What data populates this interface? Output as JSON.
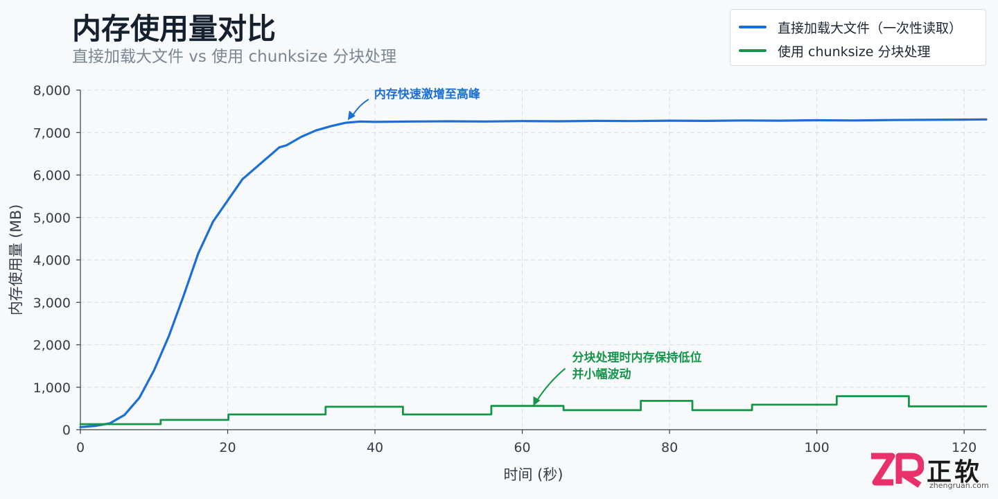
{
  "chart_data": {
    "type": "line",
    "title": "内存使用量对比",
    "subtitle": "直接加载大文件 vs 使用 chunksize 分块处理",
    "xlabel": "时间 (秒)",
    "ylabel": "内存使用量 (MB)",
    "xlim": [
      0,
      123
    ],
    "ylim": [
      0,
      8000
    ],
    "x_ticks": [
      0,
      20,
      40,
      60,
      80,
      100,
      120
    ],
    "y_ticks": [
      0,
      1000,
      2000,
      3000,
      4000,
      5000,
      6000,
      7000,
      8000
    ],
    "y_tick_labels": [
      "0",
      "1,000",
      "2,000",
      "3,000",
      "4,000",
      "5,000",
      "6,000",
      "7,000",
      "8,000"
    ],
    "grid": true,
    "legend_position": "top-right",
    "series": [
      {
        "name": "直接加载大文件（一次性读取）",
        "color": "#1a6fd6",
        "x": [
          0,
          2,
          4,
          6,
          8,
          10,
          12,
          14,
          16,
          18,
          20,
          22,
          24,
          26,
          27,
          28,
          30,
          32,
          34,
          36,
          38,
          40,
          45,
          50,
          55,
          60,
          65,
          70,
          75,
          80,
          85,
          90,
          95,
          100,
          105,
          110,
          115,
          120,
          123
        ],
        "values": [
          60,
          90,
          150,
          350,
          750,
          1400,
          2200,
          3150,
          4150,
          4900,
          5400,
          5900,
          6200,
          6500,
          6650,
          6700,
          6900,
          7050,
          7150,
          7230,
          7260,
          7250,
          7260,
          7265,
          7260,
          7270,
          7265,
          7275,
          7270,
          7280,
          7275,
          7285,
          7280,
          7290,
          7285,
          7295,
          7300,
          7305,
          7310
        ]
      },
      {
        "name": "使用 chunksize 分块处理",
        "color": "#14964a",
        "x": [
          0,
          10.9,
          10.9,
          20.1,
          20.1,
          33.3,
          33.3,
          43.8,
          43.8,
          55.8,
          55.8,
          65.6,
          65.6,
          76.1,
          76.1,
          83.1,
          83.1,
          91.2,
          91.2,
          102.7,
          102.7,
          112.5,
          112.5,
          123
        ],
        "values": [
          130,
          130,
          230,
          230,
          360,
          360,
          540,
          540,
          360,
          360,
          560,
          560,
          460,
          460,
          680,
          680,
          460,
          460,
          590,
          590,
          790,
          790,
          550,
          550
        ]
      }
    ],
    "annotations": [
      {
        "text": "内存快速激增至高峰",
        "x": 36.5,
        "y": 7260,
        "color": "#1a6fd6"
      },
      {
        "text": "分块处理时内存保持低位",
        "text2": "并小幅波动",
        "x": 61.5,
        "y": 560,
        "color": "#14964a"
      }
    ]
  },
  "watermark": {
    "brand": "正软",
    "site": "zhengruan.com"
  }
}
